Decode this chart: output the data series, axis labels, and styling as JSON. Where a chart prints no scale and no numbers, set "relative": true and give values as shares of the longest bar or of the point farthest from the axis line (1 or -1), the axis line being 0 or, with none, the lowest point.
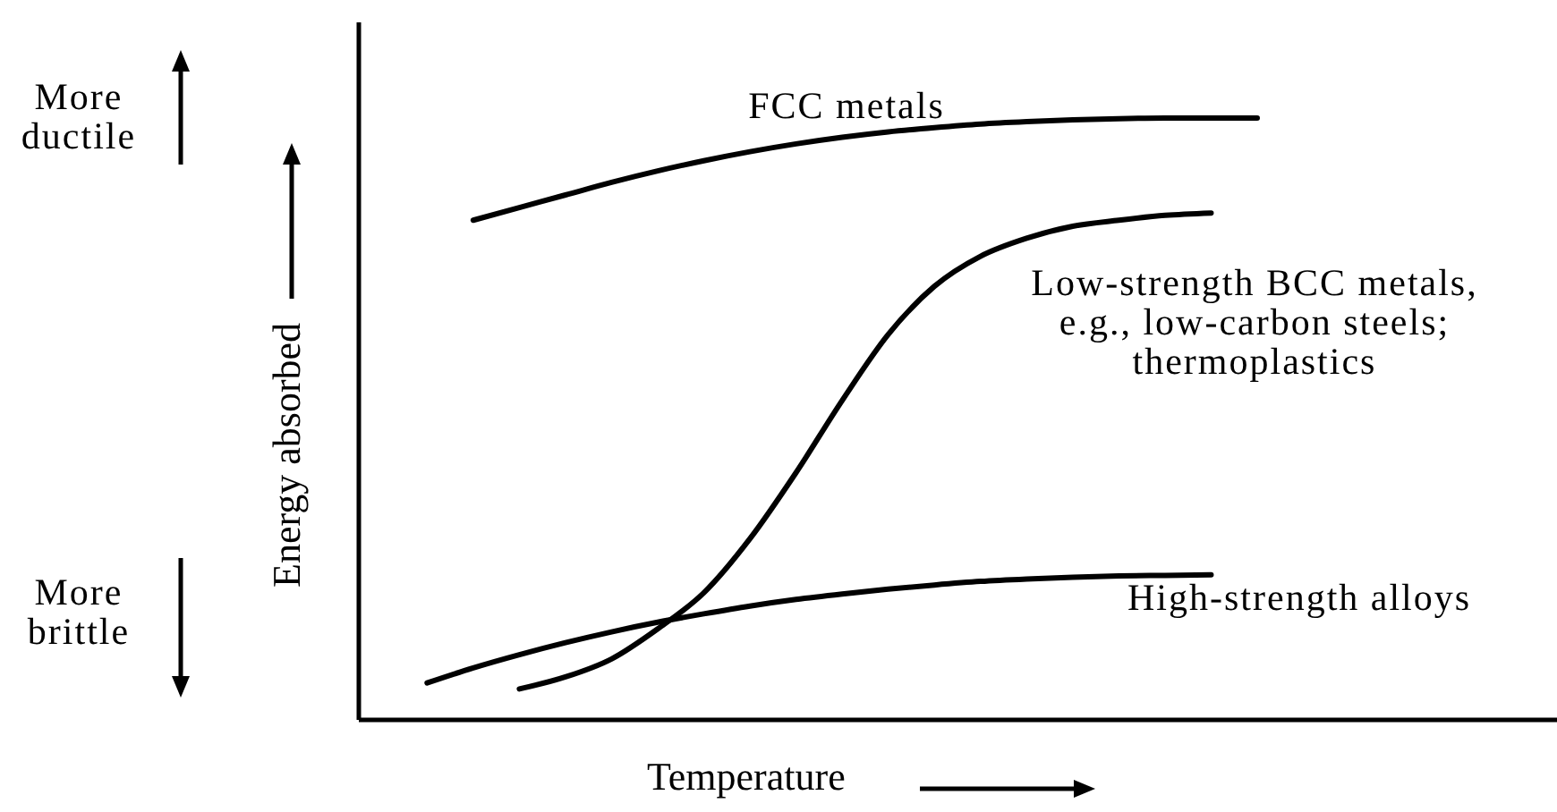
{
  "chart_data": {
    "type": "line",
    "relative": true,
    "xlabel": "Temperature",
    "ylabel": "Energy absorbed",
    "grid": false,
    "tick_labels": false,
    "categories": [
      null,
      null,
      null,
      null,
      null,
      null,
      null,
      null,
      null,
      null,
      null,
      null,
      null,
      null,
      null,
      null,
      null,
      null,
      null,
      null,
      null,
      null,
      null,
      null,
      null,
      null
    ],
    "series": [
      {
        "name": "FCC metals",
        "color": "#000000",
        "values": [
          null,
          null,
          0.83,
          0.851,
          0.872,
          0.893,
          0.912,
          0.929,
          0.944,
          0.957,
          0.968,
          0.977,
          0.984,
          0.99,
          0.994,
          0.997,
          0.999,
          1,
          1,
          1,
          null,
          null,
          null,
          null,
          null,
          null
        ]
      },
      {
        "name": "Low-strength BCC metals, e.g., low-carbon steels; thermoplastics",
        "color": "#000000",
        "values": [
          null,
          null,
          null,
          0.05,
          0.07,
          0.1,
          0.15,
          0.21,
          0.3,
          0.41,
          0.53,
          0.64,
          0.72,
          0.77,
          0.8,
          0.82,
          0.83,
          0.838,
          0.842,
          null,
          null,
          null,
          null,
          null,
          null,
          null
        ]
      },
      {
        "name": "High-strength alloys",
        "color": "#000000",
        "values": [
          null,
          0.06,
          0.085,
          0.107,
          0.127,
          0.145,
          0.161,
          0.175,
          0.188,
          0.199,
          0.208,
          0.216,
          0.223,
          0.229,
          0.233,
          0.236,
          0.238,
          0.239,
          0.24,
          null,
          null,
          null,
          null,
          null,
          null,
          null
        ]
      }
    ],
    "annotations": [
      "More ductile",
      "More brittle"
    ]
  }
}
